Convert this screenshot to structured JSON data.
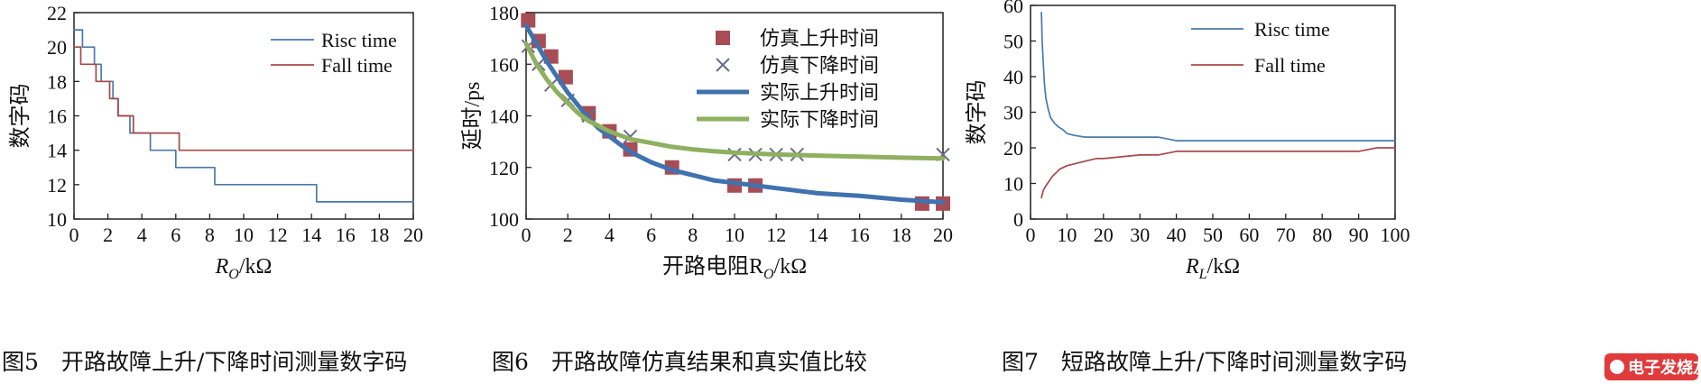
{
  "colors": {
    "rise_blue": "#4a7aa8",
    "fall_red": "#a84848",
    "sim_rise_marker": "#a84c55",
    "sim_fall_marker": "#6a6a8e",
    "actual_rise": "#3f72ae",
    "actual_fall": "#8fb060"
  },
  "chart_data": [
    {
      "type": "line",
      "caption": "图5　开路故障上升/下降时间测量数字码",
      "ylabel": "数字码",
      "xlabel_main": "R",
      "xlabel_sub": "O",
      "xlabel_unit": "/kΩ",
      "xlim": [
        0,
        20
      ],
      "ylim": [
        10,
        22
      ],
      "xticks": [
        "0",
        "2",
        "4",
        "6",
        "8",
        "10",
        "12",
        "14",
        "16",
        "18",
        "20"
      ],
      "yticks": [
        "10",
        "12",
        "14",
        "16",
        "18",
        "20",
        "22"
      ],
      "legend_position": "top-right",
      "series": [
        {
          "name": "Risc time",
          "x": [
            0,
            0.5,
            0.5,
            1.2,
            1.2,
            1.6,
            1.6,
            2.3,
            2.3,
            2.6,
            2.6,
            3.3,
            3.3,
            3.8,
            3.8,
            4.5,
            4.5,
            6.0,
            6.0,
            8.3,
            8.3,
            14.3,
            14.3,
            20
          ],
          "y": [
            21,
            21,
            20,
            20,
            19,
            19,
            18,
            18,
            17,
            17,
            16,
            16,
            15,
            15,
            15,
            15,
            14,
            14,
            13,
            13,
            12,
            12,
            11,
            11
          ]
        },
        {
          "name": "Fall time",
          "x": [
            0,
            0.4,
            0.4,
            1.3,
            1.3,
            2.1,
            2.1,
            2.6,
            2.6,
            3.5,
            3.5,
            6.2,
            6.2,
            20
          ],
          "y": [
            20,
            20,
            19,
            19,
            18,
            18,
            17,
            17,
            16,
            16,
            15,
            15,
            14,
            14
          ]
        }
      ]
    },
    {
      "type": "scatter",
      "caption": "图6　开路故障仿真结果和真实值比较",
      "ylabel": "延时/ps",
      "xlabel_main": "开路电阻R",
      "xlabel_sub": "O",
      "xlabel_unit": "/kΩ",
      "xlim": [
        0,
        20
      ],
      "ylim": [
        100,
        180
      ],
      "xticks": [
        "0",
        "2",
        "4",
        "6",
        "8",
        "10",
        "12",
        "14",
        "16",
        "18",
        "20"
      ],
      "yticks": [
        "100",
        "120",
        "140",
        "160",
        "180"
      ],
      "legend_position": "top-right",
      "series": [
        {
          "name": "仿真上升时间",
          "x": [
            0.1,
            0.6,
            1.2,
            1.9,
            3.0,
            4.0,
            5.0,
            7.0,
            10.0,
            11.0,
            19.0,
            20.0
          ],
          "y": [
            177,
            169,
            163,
            155,
            141,
            134,
            127,
            120,
            113,
            113,
            106,
            106
          ]
        },
        {
          "name": "仿真下降时间",
          "x": [
            0.1,
            0.6,
            1.2,
            2.0,
            3.0,
            5.0,
            10.0,
            11.0,
            12.0,
            13.0,
            20.0
          ],
          "y": [
            167,
            160,
            152,
            146,
            140,
            132,
            125,
            125,
            125,
            125,
            125
          ]
        },
        {
          "name": "实际上升时间",
          "x": [
            0,
            0.5,
            1,
            1.5,
            2,
            2.5,
            3,
            3.5,
            4,
            5,
            6,
            7,
            8,
            9,
            10,
            12,
            14,
            16,
            18,
            20
          ],
          "y": [
            175,
            168,
            161,
            155,
            149,
            144,
            139,
            135,
            132,
            126,
            122,
            119,
            117,
            115,
            114,
            112,
            110,
            109,
            107.5,
            106.5
          ]
        },
        {
          "name": "实际下降时间",
          "x": [
            0,
            0.5,
            1,
            1.5,
            2,
            2.5,
            3,
            3.5,
            4,
            5,
            6,
            7,
            8,
            9,
            10,
            12,
            14,
            16,
            18,
            20
          ],
          "y": [
            168,
            160,
            154,
            149,
            145,
            141,
            138,
            136,
            134,
            131,
            129.5,
            128,
            127,
            126.3,
            125.7,
            125,
            124.6,
            124.2,
            123.8,
            123.5
          ]
        }
      ]
    },
    {
      "type": "line",
      "caption": "图7　短路故障上升/下降时间测量数字码",
      "ylabel": "数字码",
      "xlabel_main": "R",
      "xlabel_sub": "L",
      "xlabel_unit": "/kΩ",
      "xlim": [
        0,
        100
      ],
      "ylim": [
        0,
        60
      ],
      "xticks": [
        "0",
        "10",
        "20",
        "30",
        "40",
        "50",
        "60",
        "70",
        "80",
        "90",
        "100"
      ],
      "yticks": [
        "0",
        "10",
        "20",
        "30",
        "40",
        "50",
        "60"
      ],
      "legend_position": "top-right",
      "series": [
        {
          "name": "Risc time",
          "x": [
            3.0,
            3.2,
            3.5,
            3.8,
            4.2,
            4.8,
            5.5,
            6.5,
            7.5,
            9,
            10,
            12,
            15,
            20,
            25,
            30,
            35,
            40,
            50,
            60,
            70,
            80,
            90,
            100
          ],
          "y": [
            58,
            50,
            44,
            38,
            34,
            31,
            28.5,
            27,
            26,
            25,
            24,
            23.5,
            23,
            23,
            23,
            23,
            23,
            22,
            22,
            22,
            22,
            22,
            22,
            22
          ]
        },
        {
          "name": "Fall time",
          "x": [
            3.0,
            3.5,
            4,
            5,
            6,
            7,
            8,
            9,
            10,
            12,
            14,
            16,
            18,
            20,
            25,
            30,
            35,
            40,
            50,
            60,
            70,
            80,
            90,
            95,
            100
          ],
          "y": [
            6,
            8,
            9,
            10.5,
            12,
            13,
            14,
            14.5,
            15,
            15.5,
            16,
            16.5,
            17,
            17,
            17.5,
            18,
            18,
            19,
            19,
            19,
            19,
            19,
            19,
            20,
            20
          ]
        }
      ]
    }
  ],
  "watermark": "电子发烧友"
}
